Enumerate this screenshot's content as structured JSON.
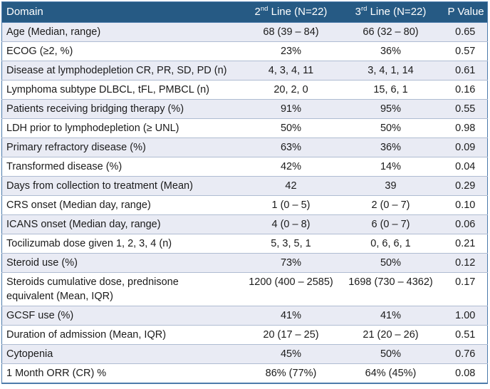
{
  "colors": {
    "page-bg": "#ffffff",
    "header-bg": "#265a84",
    "header-text": "#ffffff",
    "stripe": "#e9ebf4",
    "row-white": "#ffffff",
    "row-border": "#afbcd2",
    "outer-border": "#4c7bab",
    "text": "#1b1b1b"
  },
  "table": {
    "header": {
      "col1": "Domain",
      "col2": {
        "base": "2",
        "sup": "nd",
        "rest": " Line (N=22)"
      },
      "col3": {
        "base": "3",
        "sup": "rd",
        "rest": " Line (N=22)"
      },
      "col4": "P Value"
    },
    "rows": [
      {
        "domain": "Age (Median, range)",
        "line2": "68 (39 – 84)",
        "line3": "66 (32 – 80)",
        "p": "0.65"
      },
      {
        "domain": "ECOG (≥2, %)",
        "line2": "23%",
        "line3": "36%",
        "p": "0.57"
      },
      {
        "domain": "Disease at lymphodepletion CR, PR, SD, PD (n)",
        "line2": "4, 3, 4, 11",
        "line3": "3, 4, 1, 14",
        "p": "0.61"
      },
      {
        "domain": "Lymphoma subtype DLBCL, tFL, PMBCL (n)",
        "line2": "20, 2, 0",
        "line3": "15, 6, 1",
        "p": "0.16"
      },
      {
        "domain": "Patients receiving bridging therapy (%)",
        "line2": "91%",
        "line3": "95%",
        "p": "0.55"
      },
      {
        "domain": "LDH prior to lymphodepletion (≥ UNL)",
        "line2": "50%",
        "line3": "50%",
        "p": "0.98"
      },
      {
        "domain": "Primary refractory disease (%)",
        "line2": "63%",
        "line3": "36%",
        "p": "0.09"
      },
      {
        "domain": "Transformed disease (%)",
        "line2": "42%",
        "line3": "14%",
        "p": "0.04"
      },
      {
        "domain": "Days from collection to treatment (Mean)",
        "line2": "42",
        "line3": "39",
        "p": "0.29"
      },
      {
        "domain": "CRS onset (Median day, range)",
        "line2": "1 (0 – 5)",
        "line3": "2 (0 – 7)",
        "p": "0.10"
      },
      {
        "domain": "ICANS onset (Median day, range)",
        "line2": "4 (0 – 8)",
        "line3": "6 (0 – 7)",
        "p": "0.06"
      },
      {
        "domain": "Tocilizumab dose given 1, 2, 3, 4 (n)",
        "line2": "5, 3, 5, 1",
        "line3": "0, 6, 6, 1",
        "p": "0.21"
      },
      {
        "domain": "Steroid use (%)",
        "line2": "73%",
        "line3": "50%",
        "p": "0.12"
      },
      {
        "domain": "Steroids cumulative dose, prednisone\nequivalent (Mean, IQR)",
        "line2": "1200 (400 – 2585)",
        "line3": "1698 (730 – 4362)",
        "p": "0.17"
      },
      {
        "domain": "GCSF use (%)",
        "line2": "41%",
        "line3": "41%",
        "p": "1.00"
      },
      {
        "domain": "Duration of admission (Mean, IQR)",
        "line2": "20 (17 – 25)",
        "line3": "21 (20 – 26)",
        "p": "0.51"
      },
      {
        "domain": "Cytopenia",
        "line2": "45%",
        "line3": "50%",
        "p": "0.76"
      },
      {
        "domain": "1 Month ORR (CR) %",
        "line2": "86% (77%)",
        "line3": "64% (45%)",
        "p": "0.08"
      }
    ]
  }
}
